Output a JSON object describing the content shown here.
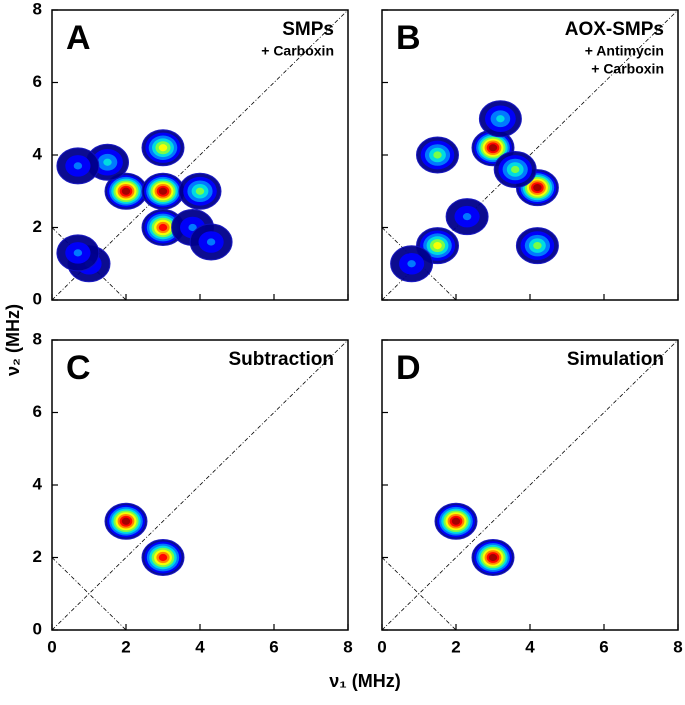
{
  "chart_data": [
    {
      "type": "contour",
      "label": "A",
      "title": "SMPs",
      "subtitle": [
        "+ Carboxin"
      ],
      "x": [
        2.0,
        3.0,
        3.0,
        3.0,
        4.0,
        1.5,
        0.7,
        1.0,
        0.7,
        3.8,
        4.3
      ],
      "y": [
        3.0,
        3.0,
        2.0,
        4.2,
        3.0,
        3.8,
        3.7,
        1.0,
        1.3,
        2.0,
        1.6
      ],
      "intensity": [
        1.0,
        1.0,
        0.85,
        0.6,
        0.5,
        0.35,
        0.2,
        0.3,
        0.25,
        0.25,
        0.2
      ],
      "xlim": [
        0,
        8
      ],
      "ylim": [
        0,
        8
      ],
      "xticks": [
        0,
        2,
        4,
        6,
        8
      ],
      "yticks": [
        0,
        2,
        4,
        6,
        8
      ]
    },
    {
      "type": "contour",
      "label": "B",
      "title": "AOX-SMPs",
      "subtitle": [
        "+ Antimycin",
        "+ Carboxin"
      ],
      "x": [
        3.0,
        4.2,
        1.5,
        1.5,
        4.2,
        0.8,
        3.2,
        2.3,
        3.6
      ],
      "y": [
        4.2,
        3.1,
        1.5,
        4.0,
        1.5,
        1.0,
        5.0,
        2.3,
        3.6
      ],
      "intensity": [
        1.0,
        1.0,
        0.6,
        0.45,
        0.45,
        0.3,
        0.4,
        0.2,
        0.5
      ],
      "xlim": [
        0,
        8
      ],
      "ylim": [
        0,
        8
      ],
      "xticks": [
        0,
        2,
        4,
        6,
        8
      ],
      "yticks": [
        0,
        2,
        4,
        6,
        8
      ]
    },
    {
      "type": "contour",
      "label": "C",
      "title": "Subtraction",
      "subtitle": [],
      "x": [
        2.0,
        3.0
      ],
      "y": [
        3.0,
        2.0
      ],
      "intensity": [
        1.0,
        0.9
      ],
      "xlim": [
        0,
        8
      ],
      "ylim": [
        0,
        8
      ],
      "xticks": [
        0,
        2,
        4,
        6,
        8
      ],
      "yticks": [
        0,
        2,
        4,
        6,
        8
      ],
      "xlabel": "ν₁ (MHz)"
    },
    {
      "type": "contour",
      "label": "D",
      "title": "Simulation",
      "subtitle": [],
      "x": [
        2.0,
        3.0
      ],
      "y": [
        3.0,
        2.0
      ],
      "intensity": [
        1.0,
        1.0
      ],
      "xlim": [
        0,
        8
      ],
      "ylim": [
        0,
        8
      ],
      "xticks": [
        0,
        2,
        4,
        6,
        8
      ],
      "yticks": [
        0,
        2,
        4,
        6,
        8
      ],
      "ylabel": "ν₂ (MHz)"
    }
  ]
}
